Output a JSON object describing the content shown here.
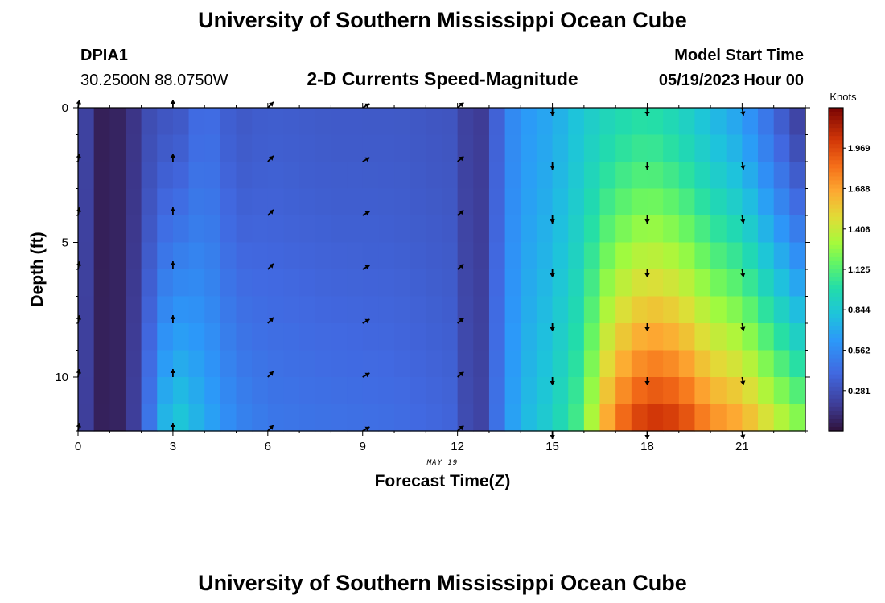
{
  "header": {
    "title": "University of Southern Mississippi Ocean Cube",
    "station_id": "DPIA1",
    "station_coords": "30.2500N  88.0750W",
    "subtitle": "2-D Currents Speed-Magnitude",
    "model_start_label": "Model Start Time",
    "model_start_value": "05/19/2023 Hour 00"
  },
  "footer": {
    "title": "University of Southern Mississippi Ocean Cube"
  },
  "chart_data": {
    "type": "heatmap",
    "title": "2-D Currents Speed-Magnitude",
    "xlabel": "Forecast Time(Z)",
    "ylabel": "Depth (ft)",
    "date_label": "MAY 19",
    "xlim": [
      0,
      23
    ],
    "ylim": [
      0,
      12
    ],
    "x_ticks": [
      0,
      3,
      6,
      9,
      12,
      15,
      18,
      21
    ],
    "x_tick_labels": [
      "0",
      "3",
      "6",
      "9",
      "12",
      "15",
      "18",
      "21"
    ],
    "y_ticks": [
      0,
      5,
      10
    ],
    "y_tick_labels": [
      "0",
      "5",
      "10"
    ],
    "colorbar": {
      "label": "Knots",
      "min": 0,
      "max": 2.25,
      "ticks": [
        0.281,
        0.562,
        0.844,
        1.125,
        1.406,
        1.688,
        1.969
      ],
      "tick_labels": [
        "0.281",
        "0.562",
        "0.844",
        "1.125",
        "1.406",
        "1.688",
        "1.969"
      ]
    },
    "arrow_times": [
      0,
      3,
      6,
      9,
      12,
      15,
      18,
      21
    ],
    "arrow_depths": [
      0,
      2,
      4,
      6,
      8,
      10,
      12
    ],
    "arrow_directions_deg": [
      10,
      0,
      45,
      60,
      50,
      180,
      180,
      170
    ],
    "time_profiles": [
      {
        "hour": 0,
        "surface": 0.35,
        "bottom": 0.32
      },
      {
        "hour": 0.5,
        "surface": 0.07,
        "bottom": 0.07
      },
      {
        "hour": 1,
        "surface": 0.05,
        "bottom": 0.06
      },
      {
        "hour": 1.5,
        "surface": 0.1,
        "bottom": 0.09
      },
      {
        "hour": 2,
        "surface": 0.2,
        "bottom": 0.3
      },
      {
        "hour": 2.5,
        "surface": 0.33,
        "bottom": 0.65
      },
      {
        "hour": 3,
        "surface": 0.28,
        "bottom": 0.9
      },
      {
        "hour": 4,
        "surface": 0.45,
        "bottom": 0.72
      },
      {
        "hour": 5,
        "surface": 0.32,
        "bottom": 0.55
      },
      {
        "hour": 6,
        "surface": 0.35,
        "bottom": 0.48
      },
      {
        "hour": 8,
        "surface": 0.33,
        "bottom": 0.45
      },
      {
        "hour": 10,
        "surface": 0.33,
        "bottom": 0.43
      },
      {
        "hour": 12,
        "surface": 0.3,
        "bottom": 0.38
      },
      {
        "hour": 12.5,
        "surface": 0.12,
        "bottom": 0.15
      },
      {
        "hour": 13,
        "surface": 0.24,
        "bottom": 0.3
      },
      {
        "hour": 13.5,
        "surface": 0.5,
        "bottom": 0.6
      },
      {
        "hour": 14,
        "surface": 0.62,
        "bottom": 0.75
      },
      {
        "hour": 15,
        "surface": 0.7,
        "bottom": 0.9
      },
      {
        "hour": 16,
        "surface": 0.85,
        "bottom": 1.15
      },
      {
        "hour": 16.5,
        "surface": 0.9,
        "bottom": 1.55
      },
      {
        "hour": 17,
        "surface": 0.95,
        "bottom": 1.85
      },
      {
        "hour": 18,
        "surface": 1.0,
        "bottom": 2.1
      },
      {
        "hour": 19,
        "surface": 0.92,
        "bottom": 2.05
      },
      {
        "hour": 20,
        "surface": 0.78,
        "bottom": 1.8
      },
      {
        "hour": 21,
        "surface": 0.65,
        "bottom": 1.7
      },
      {
        "hour": 22,
        "surface": 0.4,
        "bottom": 1.45
      },
      {
        "hour": 23,
        "surface": 0.15,
        "bottom": 1.25
      }
    ]
  }
}
